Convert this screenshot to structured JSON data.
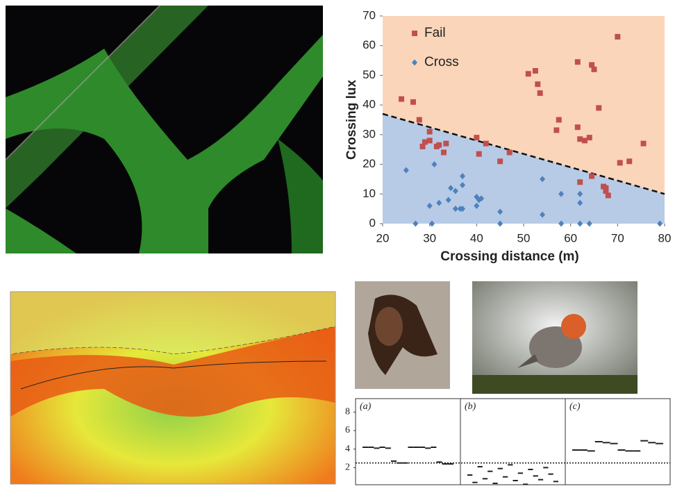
{
  "chart_data": [
    {
      "type": "scatter",
      "xlabel": "Crossing distance (m)",
      "ylabel": "Crossing lux",
      "xlim": [
        20,
        80
      ],
      "xticks": [
        20,
        30,
        40,
        50,
        60,
        70,
        80
      ],
      "ylim": [
        0,
        70
      ],
      "yticks": [
        0,
        10,
        20,
        30,
        40,
        50,
        60,
        70
      ],
      "legend": "upper-left",
      "boundary": {
        "x": [
          20,
          80
        ],
        "y": [
          37,
          10
        ],
        "above_color": "#fbd5b9",
        "below_color": "#b7cbe6"
      },
      "series": [
        {
          "name": "Fail",
          "color": "#c0504d",
          "marker": "square",
          "x": [
            24,
            26.5,
            27.8,
            28.5,
            29,
            30,
            30,
            31.5,
            32,
            33,
            33.5,
            40,
            40.5,
            42,
            45,
            47,
            51,
            52.5,
            53,
            53.5,
            57,
            57.5,
            61.5,
            61.5,
            62,
            63,
            64,
            64.5,
            65,
            66,
            62,
            64.5,
            67.5,
            67.5,
            68,
            67,
            70,
            70.5,
            72.5,
            75.5
          ],
          "y": [
            42,
            41,
            35,
            26,
            27.5,
            28,
            31,
            26,
            26.5,
            24,
            27,
            29,
            23.5,
            27,
            21,
            24,
            50.5,
            51.5,
            47,
            44,
            31.5,
            35,
            54.5,
            32.5,
            28.5,
            28,
            29,
            53.5,
            52,
            39,
            14,
            16,
            12,
            11,
            9.5,
            12.5,
            63,
            20.5,
            21,
            27
          ]
        },
        {
          "name": "Cross",
          "color": "#4f81bd",
          "marker": "diamond",
          "x": [
            25,
            27,
            30,
            30.5,
            31,
            32,
            34,
            34.5,
            35.5,
            35.5,
            36.5,
            37,
            37,
            37,
            40,
            40.5,
            41,
            40,
            45,
            45,
            54,
            54,
            58,
            58,
            62,
            62,
            62,
            64,
            79
          ],
          "y": [
            18,
            0,
            6,
            0,
            20,
            7,
            8,
            12,
            11,
            5,
            5,
            5,
            16,
            13,
            9,
            8,
            8.5,
            6,
            4,
            0,
            15,
            3,
            10,
            0,
            0,
            7,
            10,
            0,
            0
          ]
        }
      ]
    },
    {
      "type": "panels",
      "ylim": [
        0,
        9
      ],
      "yticks": [
        2,
        4,
        6,
        8
      ],
      "threshold": 2.5,
      "panels": [
        {
          "label": "(a)",
          "values": [
            4.2,
            4.2,
            4.1,
            4.2,
            4.1,
            2.7,
            2.5,
            2.5,
            4.2,
            4.2,
            4.2,
            4.1,
            4.2,
            2.6,
            2.4,
            2.4
          ]
        },
        {
          "label": "(b)",
          "values": [
            1.2,
            0.4,
            2.1,
            0.8,
            1.6,
            0.3,
            1.9,
            1.0,
            2.3,
            0.6,
            1.4,
            0.2,
            1.8,
            1.1,
            0.7,
            2.0,
            1.3,
            0.5
          ]
        },
        {
          "label": "(c)",
          "values": [
            3.9,
            3.9,
            3.8,
            4.8,
            4.7,
            4.6,
            3.9,
            3.8,
            3.8,
            4.9,
            4.7,
            4.6
          ]
        }
      ]
    }
  ]
}
